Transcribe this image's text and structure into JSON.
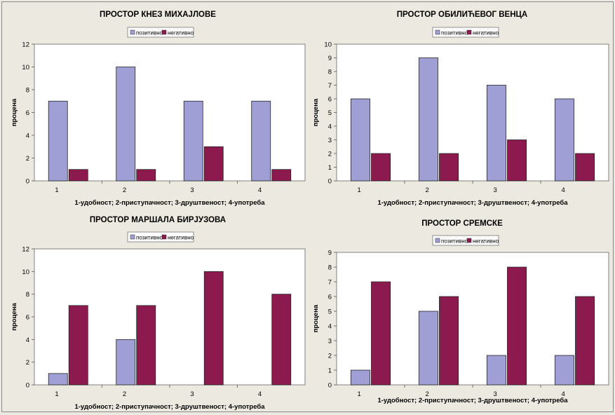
{
  "legend_labels": {
    "positive": "позитивно",
    "negative": "негативно"
  },
  "colors": {
    "positive": "#9f9fd6",
    "negative": "#8c1a4f",
    "plot_bg": "#ffffff",
    "outer_bg": "#eceae0"
  },
  "chart_data": [
    {
      "type": "bar",
      "title": "ПРОСТОР КНЕЗ МИХАЈЛОВЕ",
      "xlabel": "1-удобност; 2-приступачност; 3-друштвеност; 4-употреба",
      "ylabel": "процена",
      "categories": [
        "1",
        "2",
        "3",
        "4"
      ],
      "ylim": [
        0,
        12
      ],
      "yticks": [
        0,
        2,
        4,
        6,
        8,
        10,
        12
      ],
      "legend": "top",
      "grid": false,
      "series": [
        {
          "name": "позитивно",
          "values": [
            7,
            10,
            7,
            7
          ]
        },
        {
          "name": "негативно",
          "values": [
            1,
            1,
            3,
            1
          ]
        }
      ]
    },
    {
      "type": "bar",
      "title": "ПРОСТОР ОБИЛИЋЕВОГ ВЕНЦА",
      "xlabel": "1-удобност; 2-приступачност; 3-друштвеност; 4-употреба",
      "ylabel": "процена",
      "categories": [
        "1",
        "2",
        "3",
        "4"
      ],
      "ylim": [
        0,
        10
      ],
      "yticks": [
        0,
        1,
        2,
        3,
        4,
        5,
        6,
        7,
        8,
        9,
        10
      ],
      "legend": "top",
      "grid": false,
      "series": [
        {
          "name": "позитивно",
          "values": [
            6,
            9,
            7,
            6
          ]
        },
        {
          "name": "негативно",
          "values": [
            2,
            2,
            3,
            2
          ]
        }
      ]
    },
    {
      "type": "bar",
      "title": "ПРОСТОР МАРШАЛА БИРЈУЗОВА",
      "xlabel": "1-удобност; 2-приступачност; 3-друштвеност; 4-употреба",
      "ylabel": "процена",
      "categories": [
        "1",
        "2",
        "3",
        "4"
      ],
      "ylim": [
        0,
        12
      ],
      "yticks": [
        0,
        2,
        4,
        6,
        8,
        10,
        12
      ],
      "legend": "top",
      "grid": false,
      "series": [
        {
          "name": "позитивно",
          "values": [
            1,
            4,
            0,
            0
          ]
        },
        {
          "name": "негативно",
          "values": [
            7,
            7,
            10,
            8
          ]
        }
      ]
    },
    {
      "type": "bar",
      "title": "ПРОСТОР СРЕМСКЕ",
      "xlabel": "1-удобност; 2-приступачност; 3-друштвеност; 4-употреба",
      "ylabel": "процена",
      "categories": [
        "1",
        "2",
        "3",
        "4"
      ],
      "ylim": [
        0,
        9
      ],
      "yticks": [
        0,
        1,
        2,
        3,
        4,
        5,
        6,
        7,
        8,
        9
      ],
      "legend": "top",
      "grid": false,
      "series": [
        {
          "name": "позитивно",
          "values": [
            1,
            5,
            2,
            2
          ]
        },
        {
          "name": "негативно",
          "values": [
            7,
            6,
            8,
            6
          ]
        }
      ]
    }
  ]
}
